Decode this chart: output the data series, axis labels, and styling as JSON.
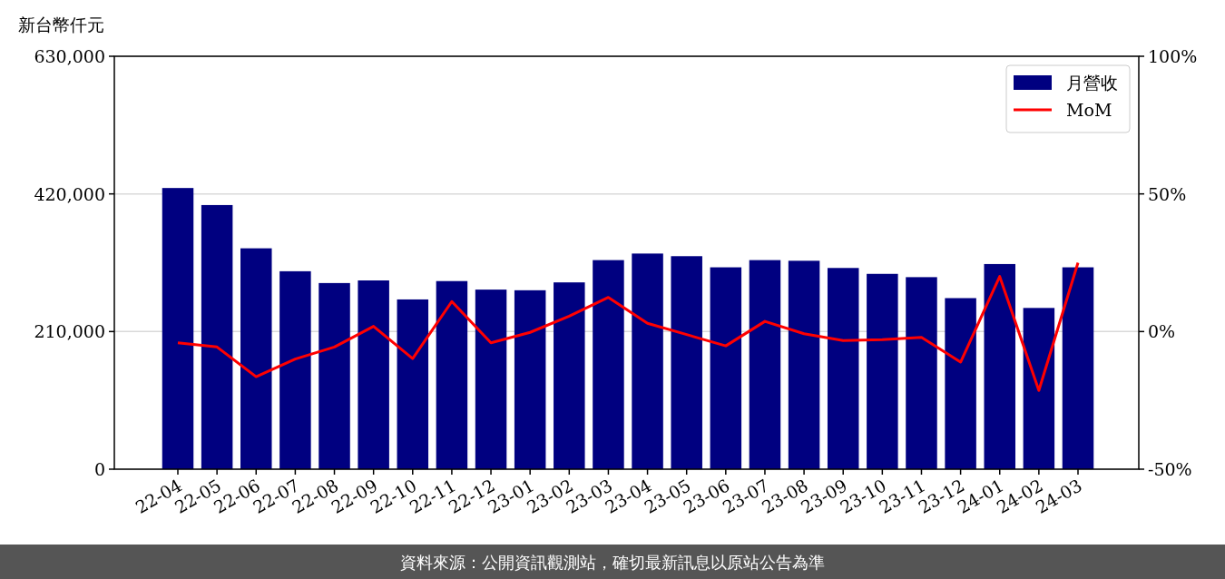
{
  "chart_data": {
    "type": "bar",
    "ylabel": "新台幣仟元",
    "categories": [
      "22-04",
      "22-05",
      "22-06",
      "22-07",
      "22-08",
      "22-09",
      "22-10",
      "22-11",
      "22-12",
      "23-01",
      "23-02",
      "23-03",
      "23-04",
      "23-05",
      "23-06",
      "23-07",
      "23-08",
      "23-09",
      "23-10",
      "23-11",
      "23-12",
      "24-01",
      "24-02",
      "24-03"
    ],
    "series": [
      {
        "name": "月營收",
        "color": "#000080",
        "values": [
          429000,
          403000,
          337000,
          302000,
          284000,
          288000,
          259000,
          287000,
          274000,
          273000,
          285000,
          319000,
          329000,
          325000,
          308000,
          319000,
          318000,
          307000,
          298000,
          293000,
          261000,
          313000,
          246000,
          308000
        ]
      },
      {
        "name": "MoM",
        "type": "line",
        "axis": "y2",
        "color": "#ff0000",
        "values": [
          -4.1,
          -5.6,
          -16.4,
          -10.0,
          -5.6,
          1.9,
          -9.8,
          10.9,
          -4.1,
          -0.3,
          5.6,
          12.4,
          3.0,
          -1.1,
          -5.2,
          3.7,
          -0.8,
          -3.3,
          -2.9,
          -2.1,
          -11.1,
          20.0,
          -21.4,
          25.0
        ]
      }
    ],
    "ylim": [
      0,
      630000
    ],
    "yticks": [
      {
        "value": 0,
        "label": "0"
      },
      {
        "value": 210000,
        "label": "210,000"
      },
      {
        "value": 420000,
        "label": "420,000"
      },
      {
        "value": 630000,
        "label": "630,000"
      }
    ],
    "y2lim": [
      -50,
      100
    ],
    "y2ticks": [
      {
        "value": -50,
        "label": "-50%"
      },
      {
        "value": 0,
        "label": "0%"
      },
      {
        "value": 50,
        "label": "50%"
      },
      {
        "value": 100,
        "label": "100%"
      }
    ],
    "grid": "y",
    "legend": "top right",
    "annotations": [
      "資料來源：公開資訊觀測站，確切最新訊息以原站公告為準"
    ]
  }
}
